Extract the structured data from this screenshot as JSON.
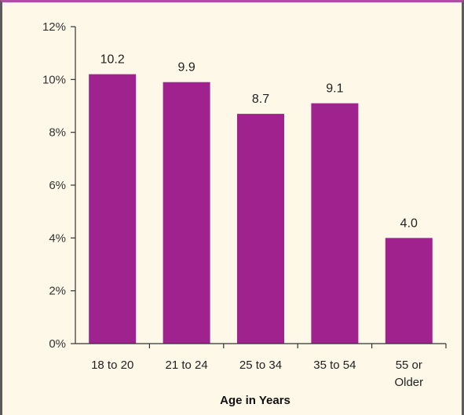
{
  "chart_data": {
    "type": "bar",
    "title": "",
    "xlabel": "Age in Years",
    "ylabel": "",
    "categories": [
      [
        "18 to 20"
      ],
      [
        "21 to 24"
      ],
      [
        "25 to 34"
      ],
      [
        "35 to 54"
      ],
      [
        "55 or",
        "Older"
      ]
    ],
    "values": [
      10.2,
      9.9,
      8.7,
      9.1,
      4.0
    ],
    "value_labels": [
      "10.2",
      "9.9",
      "8.7",
      "9.1",
      "4.0"
    ],
    "ylim": [
      0,
      12
    ],
    "y_ticks": [
      0,
      2,
      4,
      6,
      8,
      10,
      12
    ],
    "y_tick_labels": [
      "0%",
      "2%",
      "4%",
      "6%",
      "8%",
      "10%",
      "12%"
    ],
    "grid": false,
    "legend": "none",
    "bar_color": "#a0228f",
    "background_color": "#fdf8e8",
    "frame_accent_color": "#b04ea3"
  }
}
